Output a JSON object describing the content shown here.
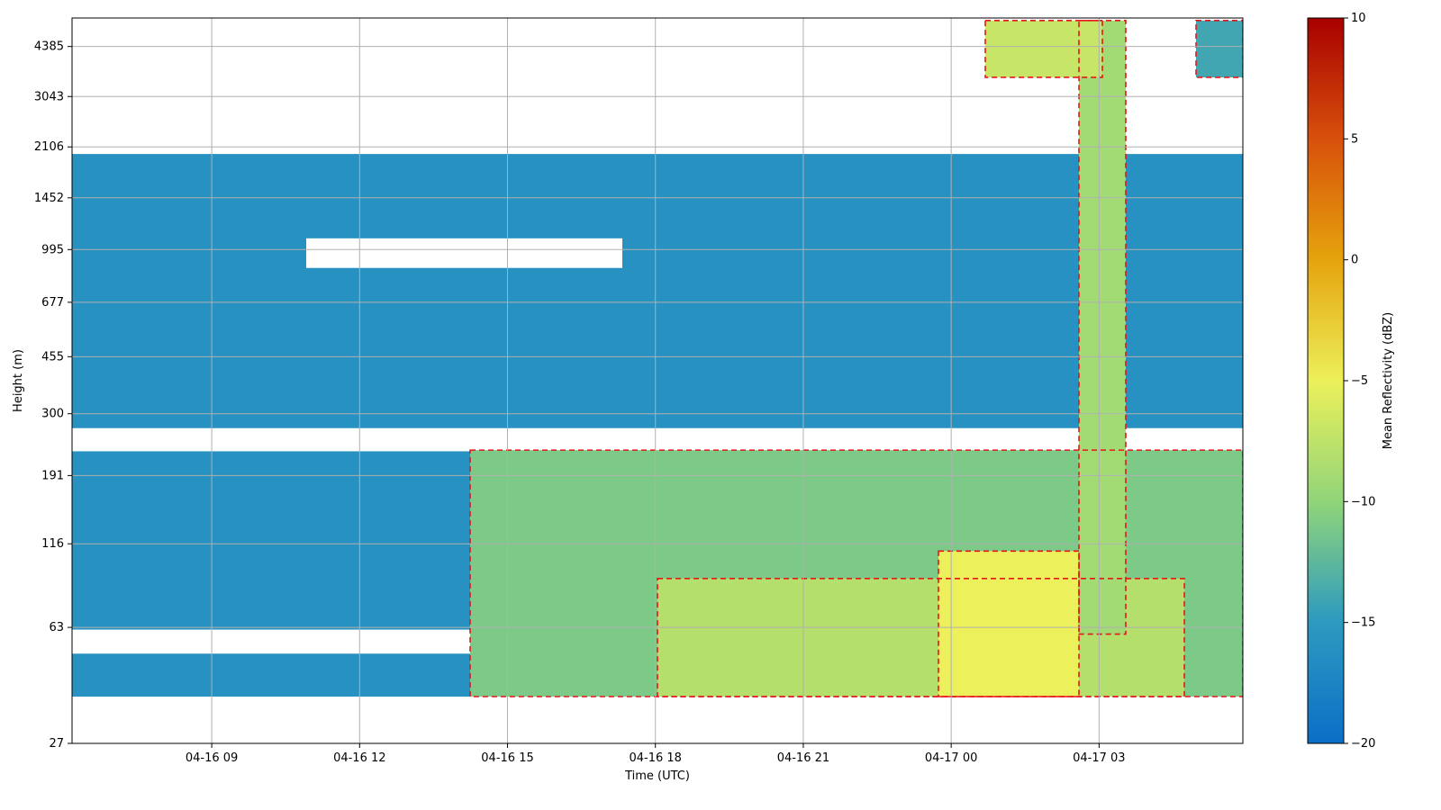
{
  "chart_data": {
    "type": "heatmap",
    "title": "",
    "xlabel": "Time (UTC)",
    "ylabel": "Height (m)",
    "x_range": [
      "2026-04-16 06:10",
      "2026-04-17 05:55"
    ],
    "x_ticks": [
      "04-16 09",
      "04-16 12",
      "04-16 15",
      "04-16 18",
      "04-16 21",
      "04-17 00",
      "04-17 03"
    ],
    "y_scale": "log",
    "y_range": [
      27,
      5400
    ],
    "y_ticks": [
      27,
      63,
      116,
      191,
      300,
      455,
      677,
      995,
      1452,
      2106,
      3043,
      4385
    ],
    "grid": true,
    "colorbar": {
      "label": "Mean Reflectivity (dBZ)",
      "colormap": "rainbow blue-green-yellow-red",
      "range": [
        -20,
        10
      ],
      "ticks": [
        -20,
        -15,
        -10,
        -5,
        0,
        5,
        10
      ],
      "colors": [
        "#0a6fc7",
        "#2e9bbf",
        "#8fd47a",
        "#ecf05a",
        "#e5a20c",
        "#d8520b",
        "#a80000"
      ]
    },
    "contour": {
      "color": "#e6161b",
      "style": "dashed"
    },
    "regions": [
      {
        "x0": 0,
        "x1": 1.0,
        "y0": 38,
        "y1": 2000,
        "value": -16
      },
      {
        "x0": 0.2,
        "x1": 0.47,
        "y0": 870,
        "y1": 1080,
        "value": null
      },
      {
        "x0": 0,
        "x1": 1.0,
        "y0": 228,
        "y1": 270,
        "value": null
      },
      {
        "x0": 0,
        "x1": 0.34,
        "y0": 52,
        "y1": 62,
        "value": null
      },
      {
        "x0": 0.34,
        "x1": 1.0,
        "y0": 38,
        "y1": 230,
        "value": -11
      },
      {
        "x0": 0.5,
        "x1": 0.95,
        "y0": 38,
        "y1": 90,
        "value": -8
      },
      {
        "x0": 0.74,
        "x1": 0.86,
        "y0": 38,
        "y1": 110,
        "value": -5
      },
      {
        "x0": 0.86,
        "x1": 0.9,
        "y0": 60,
        "y1": 5300,
        "value": -9
      },
      {
        "x0": 0.78,
        "x1": 0.88,
        "y0": 3500,
        "y1": 5300,
        "value": -7
      },
      {
        "x0": 0.96,
        "x1": 1.0,
        "y0": 3500,
        "y1": 5300,
        "value": -14
      }
    ]
  }
}
